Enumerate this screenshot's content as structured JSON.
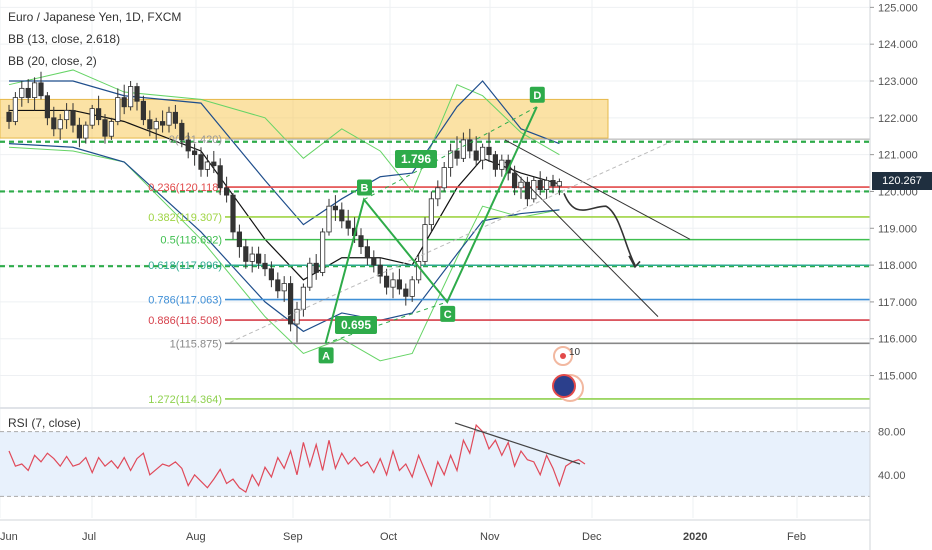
{
  "header": {
    "title": "Euro / Japanese Yen, 1D, FXCM",
    "indicator_bb1": "BB (13, close, 2.618)",
    "indicator_bb2": "BB (20, close, 2)",
    "rsi_label": "RSI (7, close)"
  },
  "colors": {
    "accent_green": "#2eab4a",
    "supply_zone": "#f7cb5b",
    "bb_green": "#66d466",
    "bb_blue": "#1f4e8c",
    "rsi_line": "#e04a5a",
    "rsi_band": "#e8f1fc",
    "current_price_bg": "#1f2f3f"
  },
  "chart_data": {
    "type": "candlestick",
    "symbol": "Euro / Japanese Yen",
    "timeframe": "1D",
    "source": "FXCM",
    "current_price": "120.267",
    "price_axis": {
      "ticks": [
        "125.000",
        "124.000",
        "123.000",
        "122.000",
        "121.000",
        "120.000",
        "119.000",
        "118.000",
        "117.000",
        "116.000",
        "115.000"
      ],
      "range": [
        114.2,
        125.2
      ]
    },
    "time_axis": {
      "ticks": [
        "Jun",
        "Jul",
        "Aug",
        "Sep",
        "Oct",
        "Nov",
        "Dec",
        "2020",
        "Feb"
      ]
    },
    "rsi_axis": {
      "ticks": [
        "80.00",
        "40.00"
      ],
      "range": [
        0,
        100
      ]
    },
    "candles": [
      [
        122.15,
        122.35,
        121.7,
        121.9
      ],
      [
        121.9,
        122.7,
        121.8,
        122.55
      ],
      [
        122.55,
        123.0,
        122.3,
        122.8
      ],
      [
        122.8,
        123.05,
        122.4,
        122.55
      ],
      [
        122.55,
        123.1,
        122.2,
        122.95
      ],
      [
        122.95,
        123.25,
        122.5,
        122.6
      ],
      [
        122.6,
        122.7,
        121.8,
        122.0
      ],
      [
        122.0,
        122.3,
        121.5,
        121.7
      ],
      [
        121.7,
        122.1,
        121.4,
        121.95
      ],
      [
        121.95,
        122.4,
        121.7,
        122.2
      ],
      [
        122.2,
        122.4,
        121.6,
        121.8
      ],
      [
        121.8,
        122.0,
        121.2,
        121.45
      ],
      [
        121.45,
        121.9,
        121.3,
        121.8
      ],
      [
        121.8,
        122.35,
        121.7,
        122.25
      ],
      [
        122.25,
        122.6,
        121.8,
        121.95
      ],
      [
        121.95,
        122.1,
        121.3,
        121.5
      ],
      [
        121.5,
        122.0,
        121.4,
        121.9
      ],
      [
        121.9,
        122.8,
        121.8,
        122.55
      ],
      [
        122.55,
        122.9,
        122.1,
        122.3
      ],
      [
        122.3,
        123.0,
        122.2,
        122.85
      ],
      [
        122.85,
        122.95,
        122.2,
        122.45
      ],
      [
        122.45,
        122.6,
        121.8,
        121.95
      ],
      [
        121.95,
        122.2,
        121.5,
        121.7
      ],
      [
        121.7,
        122.0,
        121.4,
        121.9
      ],
      [
        121.9,
        122.2,
        121.6,
        121.8
      ],
      [
        121.8,
        122.3,
        121.6,
        122.15
      ],
      [
        122.15,
        122.35,
        121.7,
        121.85
      ],
      [
        121.85,
        121.95,
        121.2,
        121.4
      ],
      [
        121.4,
        121.6,
        120.9,
        121.1
      ],
      [
        121.1,
        121.3,
        120.7,
        121.0
      ],
      [
        121.0,
        121.2,
        120.4,
        120.6
      ],
      [
        120.6,
        121.0,
        120.4,
        120.8
      ],
      [
        120.8,
        121.1,
        120.5,
        120.7
      ],
      [
        120.7,
        120.9,
        119.9,
        120.1
      ],
      [
        120.1,
        120.4,
        119.7,
        119.9
      ],
      [
        119.9,
        119.95,
        118.7,
        118.9
      ],
      [
        118.9,
        119.1,
        118.2,
        118.5
      ],
      [
        118.5,
        118.7,
        117.9,
        118.1
      ],
      [
        118.1,
        118.5,
        117.8,
        118.3
      ],
      [
        118.3,
        118.5,
        117.9,
        118.05
      ],
      [
        118.05,
        118.3,
        117.7,
        117.9
      ],
      [
        117.9,
        118.1,
        117.4,
        117.6
      ],
      [
        117.6,
        117.8,
        117.1,
        117.3
      ],
      [
        117.3,
        117.7,
        117.0,
        117.5
      ],
      [
        117.5,
        117.7,
        116.2,
        116.4
      ],
      [
        116.4,
        117.0,
        115.9,
        116.8
      ],
      [
        116.8,
        117.5,
        116.6,
        117.4
      ],
      [
        117.4,
        118.2,
        117.3,
        118.05
      ],
      [
        118.05,
        118.3,
        117.6,
        117.8
      ],
      [
        117.8,
        119.0,
        117.7,
        118.9
      ],
      [
        118.9,
        119.8,
        118.8,
        119.6
      ],
      [
        119.6,
        119.9,
        119.2,
        119.5
      ],
      [
        119.5,
        119.7,
        119.0,
        119.2
      ],
      [
        119.2,
        119.5,
        118.8,
        119.0
      ],
      [
        119.0,
        119.3,
        118.6,
        118.8
      ],
      [
        118.8,
        119.0,
        118.3,
        118.5
      ],
      [
        118.5,
        118.7,
        118.0,
        118.2
      ],
      [
        118.2,
        118.4,
        117.8,
        118.0
      ],
      [
        118.0,
        118.2,
        117.5,
        117.7
      ],
      [
        117.7,
        117.9,
        117.2,
        117.4
      ],
      [
        117.4,
        117.8,
        117.1,
        117.6
      ],
      [
        117.6,
        117.9,
        117.2,
        117.35
      ],
      [
        117.35,
        117.5,
        116.9,
        117.15
      ],
      [
        117.15,
        117.7,
        117.0,
        117.6
      ],
      [
        117.6,
        118.3,
        117.5,
        118.1
      ],
      [
        118.1,
        119.3,
        118.0,
        119.1
      ],
      [
        119.1,
        120.0,
        118.9,
        119.8
      ],
      [
        119.8,
        120.3,
        119.6,
        120.1
      ],
      [
        120.1,
        120.8,
        120.0,
        120.65
      ],
      [
        120.65,
        121.3,
        120.4,
        121.1
      ],
      [
        121.1,
        121.5,
        120.7,
        120.9
      ],
      [
        120.9,
        121.6,
        120.8,
        121.4
      ],
      [
        121.4,
        121.7,
        120.9,
        121.1
      ],
      [
        121.1,
        121.5,
        120.7,
        120.85
      ],
      [
        120.85,
        121.3,
        120.6,
        121.2
      ],
      [
        121.2,
        121.6,
        120.8,
        121.0
      ],
      [
        121.0,
        121.1,
        120.4,
        120.6
      ],
      [
        120.6,
        121.0,
        120.4,
        120.85
      ],
      [
        120.85,
        121.0,
        120.3,
        120.5
      ],
      [
        120.5,
        120.7,
        119.9,
        120.1
      ],
      [
        120.1,
        120.4,
        119.8,
        120.25
      ],
      [
        120.25,
        120.4,
        119.6,
        119.8
      ],
      [
        119.8,
        120.4,
        119.7,
        120.3
      ],
      [
        120.3,
        120.55,
        119.9,
        120.05
      ],
      [
        120.05,
        120.4,
        119.8,
        120.3
      ],
      [
        120.3,
        120.45,
        119.95,
        120.15
      ],
      [
        120.15,
        120.35,
        119.9,
        120.267
      ]
    ],
    "bb_13_2618": {
      "upper": [
        [
          0,
          122.9
        ],
        [
          10,
          123.3
        ],
        [
          18,
          122.7
        ],
        [
          30,
          122.5
        ],
        [
          40,
          122.0
        ],
        [
          46,
          120.9
        ],
        [
          52,
          121.7
        ],
        [
          58,
          121.1
        ],
        [
          63,
          120.0
        ],
        [
          70,
          122.9
        ],
        [
          74,
          122.6
        ],
        [
          80,
          121.6
        ],
        [
          86,
          121.0
        ]
      ],
      "lower": [
        [
          0,
          121.2
        ],
        [
          10,
          121.1
        ],
        [
          18,
          120.8
        ],
        [
          30,
          118.7
        ],
        [
          40,
          116.6
        ],
        [
          46,
          115.6
        ],
        [
          52,
          116.0
        ],
        [
          58,
          115.4
        ],
        [
          63,
          115.6
        ],
        [
          70,
          118.2
        ],
        [
          74,
          119.6
        ],
        [
          80,
          119.3
        ],
        [
          86,
          119.5
        ]
      ]
    },
    "bb_20_2": {
      "upper": [
        [
          0,
          123.0
        ],
        [
          10,
          123.0
        ],
        [
          18,
          122.6
        ],
        [
          30,
          122.4
        ],
        [
          40,
          120.3
        ],
        [
          46,
          119.1
        ],
        [
          52,
          119.8
        ],
        [
          58,
          120.4
        ],
        [
          63,
          120.5
        ],
        [
          70,
          122.3
        ],
        [
          74,
          123.0
        ],
        [
          80,
          121.7
        ],
        [
          86,
          121.3
        ]
      ],
      "middle": [
        [
          0,
          122.2
        ],
        [
          10,
          122.2
        ],
        [
          18,
          121.9
        ],
        [
          30,
          121.1
        ],
        [
          40,
          118.7
        ],
        [
          46,
          117.6
        ],
        [
          52,
          118.2
        ],
        [
          58,
          118.2
        ],
        [
          63,
          118.0
        ],
        [
          70,
          120.1
        ],
        [
          74,
          120.9
        ],
        [
          80,
          120.5
        ],
        [
          86,
          120.2
        ]
      ],
      "lower": [
        [
          0,
          121.3
        ],
        [
          10,
          121.2
        ],
        [
          18,
          120.8
        ],
        [
          30,
          118.9
        ],
        [
          40,
          117.0
        ],
        [
          46,
          116.2
        ],
        [
          52,
          116.7
        ],
        [
          58,
          116.5
        ],
        [
          63,
          116.7
        ],
        [
          70,
          118.3
        ],
        [
          74,
          119.2
        ],
        [
          80,
          119.4
        ],
        [
          86,
          119.5
        ]
      ]
    },
    "supply_zone": {
      "from": 0,
      "to": 101,
      "bottom": 121.45,
      "top": 122.5
    },
    "fib_levels": [
      {
        "label": "0.236(120.118)",
        "value": 120.118,
        "color": "#e24a4a"
      },
      {
        "label": "0.382(119.307)",
        "value": 119.307,
        "color": "#9fd444"
      },
      {
        "label": "0.5(118.692)",
        "value": 118.692,
        "color": "#3fbf4f"
      },
      {
        "label": "0.618(117.996)",
        "value": 117.996,
        "color": "#2eab8f"
      },
      {
        "label": "0.786(117.063)",
        "value": 117.063,
        "color": "#3f8fd6"
      },
      {
        "label": "0.886(116.508)",
        "value": 116.508,
        "color": "#d63f4a"
      },
      {
        "label": "1(115.875)",
        "value": 115.875,
        "color": "#888888"
      },
      {
        "label": "1.272(114.364)",
        "value": 114.364,
        "color": "#8fd14f"
      }
    ],
    "fib_top": {
      "label": "0(121.420)",
      "value": 121.42
    },
    "horizontal_levels": [
      121.35,
      120.0,
      117.97
    ],
    "abcd_pattern": {
      "points": [
        {
          "label": "A",
          "x": 49,
          "y": 115.875
        },
        {
          "label": "B",
          "x": 55,
          "y": 119.78
        },
        {
          "label": "C",
          "x": 68,
          "y": 117.0
        },
        {
          "label": "D",
          "x": 82,
          "y": 122.3
        }
      ],
      "ratios": [
        "1.796",
        "0.695"
      ]
    },
    "rsi": {
      "values": [
        62,
        48,
        50,
        44,
        58,
        52,
        60,
        55,
        48,
        57,
        48,
        50,
        56,
        42,
        56,
        48,
        53,
        46,
        56,
        44,
        55,
        60,
        40,
        45,
        50,
        48,
        52,
        46,
        30,
        40,
        34,
        28,
        36,
        45,
        32,
        36,
        28,
        24,
        40,
        30,
        47,
        38,
        56,
        46,
        62,
        40,
        70,
        48,
        68,
        44,
        72,
        46,
        60,
        50,
        56,
        48,
        52,
        42,
        55,
        40,
        62,
        44,
        50,
        38,
        58,
        44,
        30,
        52,
        40,
        58,
        44,
        72,
        60,
        86,
        80,
        64,
        72,
        58,
        70,
        48,
        62,
        54,
        52,
        40,
        58,
        46,
        30,
        48,
        52,
        54,
        50
      ]
    }
  },
  "rsi_chart": {
    "label": "RSI (7, close)"
  },
  "annotations": {
    "counter": "10"
  }
}
